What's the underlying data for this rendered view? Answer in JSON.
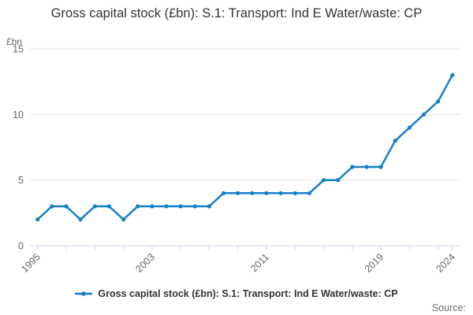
{
  "header": {
    "title": "Gross capital stock (£bn): S.1: Transport: Ind E Water/waste: CP"
  },
  "legend": {
    "label": "Gross capital stock (£bn): S.1: Transport: Ind E Water/waste: CP"
  },
  "footer": {
    "source_label": "Source:"
  },
  "colors": {
    "line": "#1380c6",
    "grid": "#e6e6e6",
    "axis": "#ccd6eb",
    "tick_label": "#666666",
    "title_text": "#333333",
    "legend_text": "#333333",
    "source_text": "#6e6e6e"
  },
  "chart_data": {
    "type": "line",
    "title": "Gross capital stock (£bn): S.1: Transport: Ind E Water/waste: CP",
    "xlabel": "",
    "ylabel": "£bn",
    "x": [
      1995,
      1996,
      1997,
      1998,
      1999,
      2000,
      2001,
      2002,
      2003,
      2004,
      2005,
      2006,
      2007,
      2008,
      2009,
      2010,
      2011,
      2012,
      2013,
      2014,
      2015,
      2016,
      2017,
      2018,
      2019,
      2020,
      2021,
      2022,
      2023,
      2024
    ],
    "series": [
      {
        "name": "Gross capital stock (£bn): S.1: Transport: Ind E Water/waste: CP",
        "values": [
          2,
          3,
          3,
          2,
          3,
          3,
          2,
          3,
          3,
          3,
          3,
          3,
          3,
          4,
          4,
          4,
          4,
          4,
          4,
          4,
          5,
          5,
          6,
          6,
          6,
          8,
          9,
          10,
          11,
          13
        ]
      }
    ],
    "ylim": [
      0,
      15
    ],
    "y_ticks": [
      0,
      5,
      10,
      15
    ],
    "x_tick_years": [
      1995,
      1997,
      1999,
      2001,
      2003,
      2005,
      2007,
      2009,
      2011,
      2013,
      2015,
      2017,
      2019,
      2021,
      2023,
      2024
    ],
    "x_labeled_years": [
      1995,
      2003,
      2011,
      2019,
      2024
    ],
    "grid": true,
    "legend_position": "bottom",
    "marker": "circle"
  }
}
